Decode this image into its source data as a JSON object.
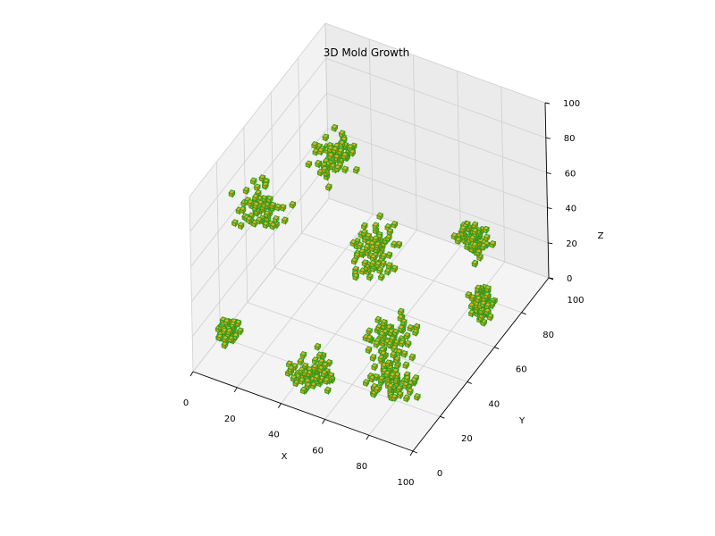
{
  "chart_data": {
    "type": "scatter",
    "subtype": "3d-voxel",
    "title": "3D Mold Growth",
    "xlabel": "X",
    "ylabel": "Y",
    "zlabel": "Z",
    "xlim": [
      0,
      100
    ],
    "ylim": [
      0,
      100
    ],
    "zlim": [
      0,
      100
    ],
    "xticks": [
      "0",
      "20",
      "40",
      "60",
      "80",
      "100"
    ],
    "yticks": [
      "0",
      "20",
      "40",
      "60",
      "80",
      "100"
    ],
    "zticks": [
      "0",
      "20",
      "40",
      "60",
      "80",
      "100"
    ],
    "grid": true,
    "colors": {
      "face": "#c8a413",
      "edge": "#2e9b1c",
      "pane_back": "#ebebeb",
      "pane_side": "#f2f2f2",
      "pane_floor": "#f4f4f4",
      "grid": "#cfcfcf"
    },
    "colonies": [
      {
        "center": [
          34,
          48,
          90
        ],
        "spread": [
          6,
          6,
          6
        ]
      },
      {
        "center": [
          8,
          38,
          58
        ],
        "spread": [
          6,
          6,
          8
        ]
      },
      {
        "center": [
          4,
          18,
          5
        ],
        "spread": [
          3,
          3,
          3
        ]
      },
      {
        "center": [
          45,
          58,
          28
        ],
        "spread": [
          6,
          7,
          10
        ]
      },
      {
        "center": [
          44,
          14,
          4
        ],
        "spread": [
          6,
          6,
          4
        ]
      },
      {
        "center": [
          62,
          42,
          4
        ],
        "spread": [
          6,
          7,
          6
        ]
      },
      {
        "center": [
          74,
          26,
          4
        ],
        "spread": [
          7,
          6,
          4
        ]
      },
      {
        "center": [
          86,
          66,
          48
        ],
        "spread": [
          4,
          4,
          6
        ]
      },
      {
        "center": [
          90,
          66,
          14
        ],
        "spread": [
          3,
          3,
          6
        ]
      }
    ]
  }
}
